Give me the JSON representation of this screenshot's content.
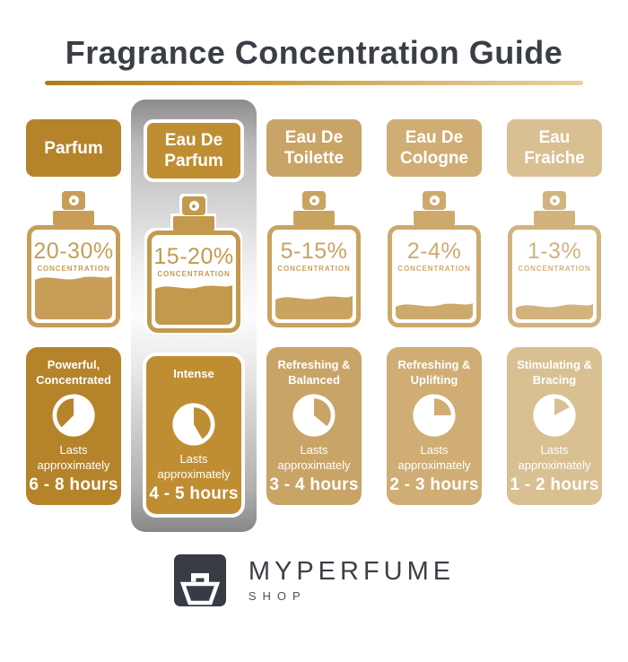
{
  "title": "Fragrance Concentration Guide",
  "concentration_label": "CONCENTRATION",
  "lasts_label": "Lasts\napproximately",
  "accent": {
    "underline_gradient": [
      "#a97c22",
      "#e7d0a0"
    ],
    "title_color": "#3a3e45",
    "highlight_panel_silver": [
      "#8d8d8d",
      "#fcfcfc",
      "#878787"
    ]
  },
  "columns": [
    {
      "label": "Parfum",
      "highlighted": false,
      "theme_color": "#b5832a",
      "bottle_color": "#c79d58",
      "concentration": "20-30%",
      "fill_percent": 40,
      "character": "Powerful,\nConcentrated",
      "duration": "6 - 8 hours",
      "clock_gold_wedge": {
        "start_deg": 225,
        "end_deg": 360
      }
    },
    {
      "label": "Eau De\nParfum",
      "highlighted": true,
      "theme_color": "#bf8e33",
      "bottle_color": "#c3994e",
      "concentration": "15-20%",
      "fill_percent": 36,
      "character": "Intense",
      "duration": "4 - 5 hours",
      "clock_gold_wedge": {
        "start_deg": 0,
        "end_deg": 150
      }
    },
    {
      "label": "Eau De\nToilette",
      "highlighted": false,
      "theme_color": "#c9a467",
      "bottle_color": "#c9a35f",
      "concentration": "5-15%",
      "fill_percent": 19,
      "character": "Refreshing &\nBalanced",
      "duration": "3 - 4 hours",
      "clock_gold_wedge": {
        "start_deg": 0,
        "end_deg": 130
      }
    },
    {
      "label": "Eau De\nCologne",
      "highlighted": false,
      "theme_color": "#cfad74",
      "bottle_color": "#cdaa6c",
      "concentration": "2-4%",
      "fill_percent": 11,
      "character": "Refreshing &\nUplifting",
      "duration": "2 - 3 hours",
      "clock_gold_wedge": {
        "start_deg": 0,
        "end_deg": 90
      }
    },
    {
      "label": "Eau\nFraiche",
      "highlighted": false,
      "theme_color": "#d9c092",
      "bottle_color": "#d2b37e",
      "concentration": "1-3%",
      "fill_percent": 10,
      "character": "Stimulating &\nBracing",
      "duration": "1 - 2 hours",
      "clock_gold_wedge": {
        "start_deg": 0,
        "end_deg": 62
      }
    }
  ],
  "logo": {
    "brand": "MYPERFUME",
    "sub": "SHOP",
    "mark_background": "#363b44"
  }
}
